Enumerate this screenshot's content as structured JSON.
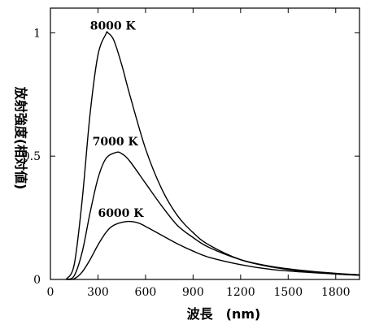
{
  "chart_data": {
    "type": "line",
    "title": "",
    "xlabel": "波長　(nm)",
    "ylabel": "放射強度(相対値)",
    "xlim": [
      0,
      1950
    ],
    "ylim": [
      0,
      1.1
    ],
    "x_ticks": [
      "0",
      "300",
      "600",
      "900",
      "1200",
      "1500",
      "1800"
    ],
    "x_tick_values": [
      0,
      300,
      600,
      900,
      1200,
      1500,
      1800
    ],
    "y_ticks": [
      "0",
      "0.5",
      "1"
    ],
    "y_tick_values": [
      0,
      0.5,
      1
    ],
    "grid": false,
    "series": [
      {
        "name": "8000 K",
        "temperature": 8000,
        "x": [
          100,
          150,
          200,
          250,
          300,
          350,
          362,
          400,
          450,
          500,
          600,
          700,
          800,
          900,
          1000,
          1200,
          1400,
          1600,
          1800,
          1950
        ],
        "y": [
          0.001,
          0.06,
          0.32,
          0.67,
          0.91,
          0.995,
          1.0,
          0.97,
          0.87,
          0.75,
          0.53,
          0.37,
          0.26,
          0.19,
          0.14,
          0.08,
          0.05,
          0.033,
          0.022,
          0.017
        ]
      },
      {
        "name": "7000 K",
        "temperature": 7000,
        "x": [
          100,
          150,
          200,
          250,
          300,
          350,
          414,
          450,
          500,
          600,
          700,
          800,
          900,
          1000,
          1200,
          1400,
          1600,
          1800,
          1950
        ],
        "y": [
          0.0001,
          0.015,
          0.11,
          0.27,
          0.41,
          0.49,
          0.515,
          0.51,
          0.48,
          0.39,
          0.3,
          0.22,
          0.17,
          0.13,
          0.08,
          0.052,
          0.036,
          0.025,
          0.019
        ]
      },
      {
        "name": "6000 K",
        "temperature": 6000,
        "x": [
          100,
          150,
          200,
          250,
          300,
          350,
          400,
          483,
          550,
          600,
          700,
          800,
          900,
          1000,
          1200,
          1400,
          1600,
          1800,
          1950
        ],
        "y": [
          0.0,
          0.003,
          0.03,
          0.08,
          0.14,
          0.19,
          0.22,
          0.235,
          0.23,
          0.215,
          0.18,
          0.145,
          0.115,
          0.09,
          0.06,
          0.04,
          0.03,
          0.022,
          0.017
        ]
      }
    ],
    "series_labels": [
      {
        "text": "8000 K",
        "at": [
          250,
          1.03
        ]
      },
      {
        "text": "7000 K",
        "at": [
          265,
          0.56
        ]
      },
      {
        "text": "6000 K",
        "at": [
          300,
          0.27
        ]
      }
    ]
  }
}
